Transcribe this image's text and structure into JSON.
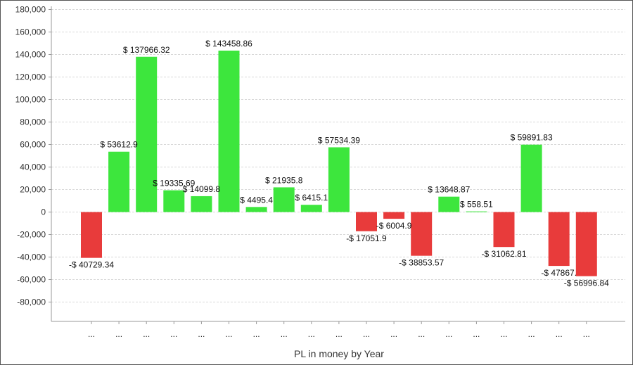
{
  "chart_data": {
    "type": "bar",
    "title": "",
    "xlabel": "PL in money by Year",
    "ylabel": "",
    "ylim": [
      -100000,
      180000
    ],
    "yticks": [
      180000,
      160000,
      140000,
      120000,
      100000,
      80000,
      60000,
      40000,
      20000,
      0,
      -20000,
      -40000,
      -60000,
      -80000
    ],
    "ytick_labels": [
      "180,000",
      "160,000",
      "140,000",
      "120,000",
      "100,000",
      "80,000",
      "60,000",
      "40,000",
      "20,000",
      "0",
      "-20,000",
      "-40,000",
      "-60,000",
      "-80,000"
    ],
    "grid": true,
    "legend": "none",
    "colors": {
      "positive": "#3DE63D",
      "negative": "#E83B3B",
      "grid": "#D8D8D8",
      "axis": "#999999"
    },
    "categories": [
      "...",
      "...",
      "...",
      "...",
      "...",
      "...",
      "...",
      "...",
      "...",
      "...",
      "...",
      "...",
      "...",
      "...",
      "...",
      "...",
      "...",
      "...",
      "..."
    ],
    "values": [
      -40729.34,
      53612.9,
      137966.32,
      19335.69,
      14099.8,
      143458.86,
      4495.4,
      21935.8,
      6415.1,
      57534.39,
      -17051.9,
      -6004.9,
      -38853.57,
      13648.87,
      558.51,
      -31062.81,
      59891.83,
      -47867.0,
      -56996.84
    ],
    "data_labels": [
      "-$ 40729.34",
      "$ 53612.9",
      "$ 137966.32",
      "$ 19335.69",
      "$ 14099.8",
      "$ 143458.86",
      "$ 4495.4",
      "$ 21935.8",
      "$ 6415.1",
      "$ 57534.39",
      "-$ 17051.9",
      "-$ 6004.9",
      "-$ 38853.57",
      "$ 13648.87",
      "$ 558.51",
      "-$ 31062.81",
      "$ 59891.83",
      "-$ 47867.",
      "-$ 56996.84"
    ]
  }
}
